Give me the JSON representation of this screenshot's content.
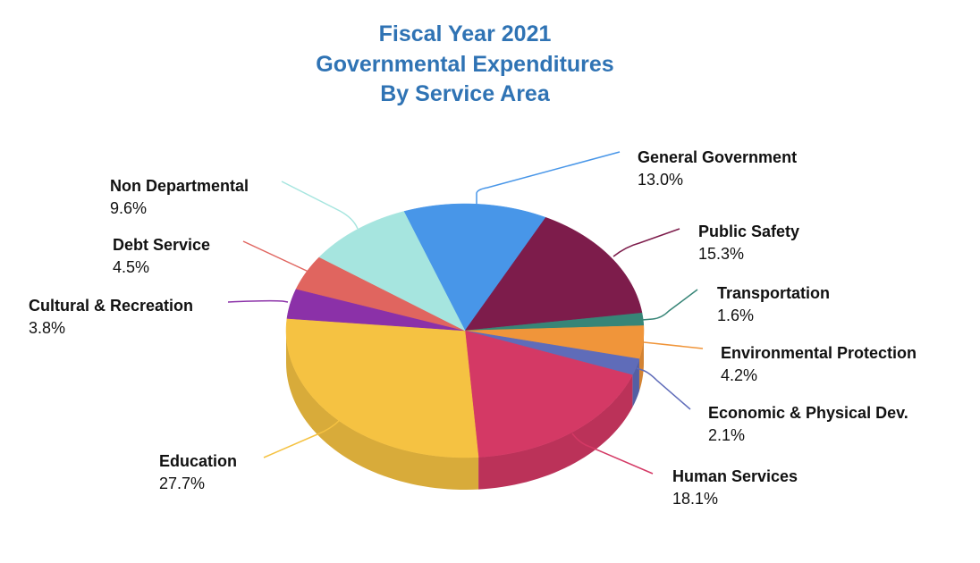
{
  "chart_data": {
    "type": "pie",
    "style": "3d",
    "title": [
      "Fiscal Year 2021",
      "Governmental Expenditures",
      "By Service Area"
    ],
    "slices": [
      {
        "label": "General Government",
        "value": 13.0,
        "display": "13.0%",
        "color": "#4896e8"
      },
      {
        "label": "Public Safety",
        "value": 15.3,
        "display": "15.3%",
        "color": "#7d1c4b"
      },
      {
        "label": "Transportation",
        "value": 1.6,
        "display": "1.6%",
        "color": "#378577"
      },
      {
        "label": "Environmental Protection",
        "value": 4.2,
        "display": "4.2%",
        "color": "#f0953a"
      },
      {
        "label": "Economic & Physical Dev.",
        "value": 2.1,
        "display": "2.1%",
        "color": "#5f6cb9"
      },
      {
        "label": "Human Services",
        "value": 18.1,
        "display": "18.1%",
        "color": "#d43965"
      },
      {
        "label": "Education",
        "value": 27.7,
        "display": "27.7%",
        "color": "#f5c242"
      },
      {
        "label": "Cultural & Recreation",
        "value": 3.8,
        "display": "3.8%",
        "color": "#8b31a8"
      },
      {
        "label": "Debt Service",
        "value": 4.5,
        "display": "4.5%",
        "color": "#e0655f"
      },
      {
        "label": "Non Departmental",
        "value": 9.6,
        "display": "9.6%",
        "color": "#a6e5df"
      }
    ],
    "legend": "none",
    "labels": "outside with leader lines"
  }
}
